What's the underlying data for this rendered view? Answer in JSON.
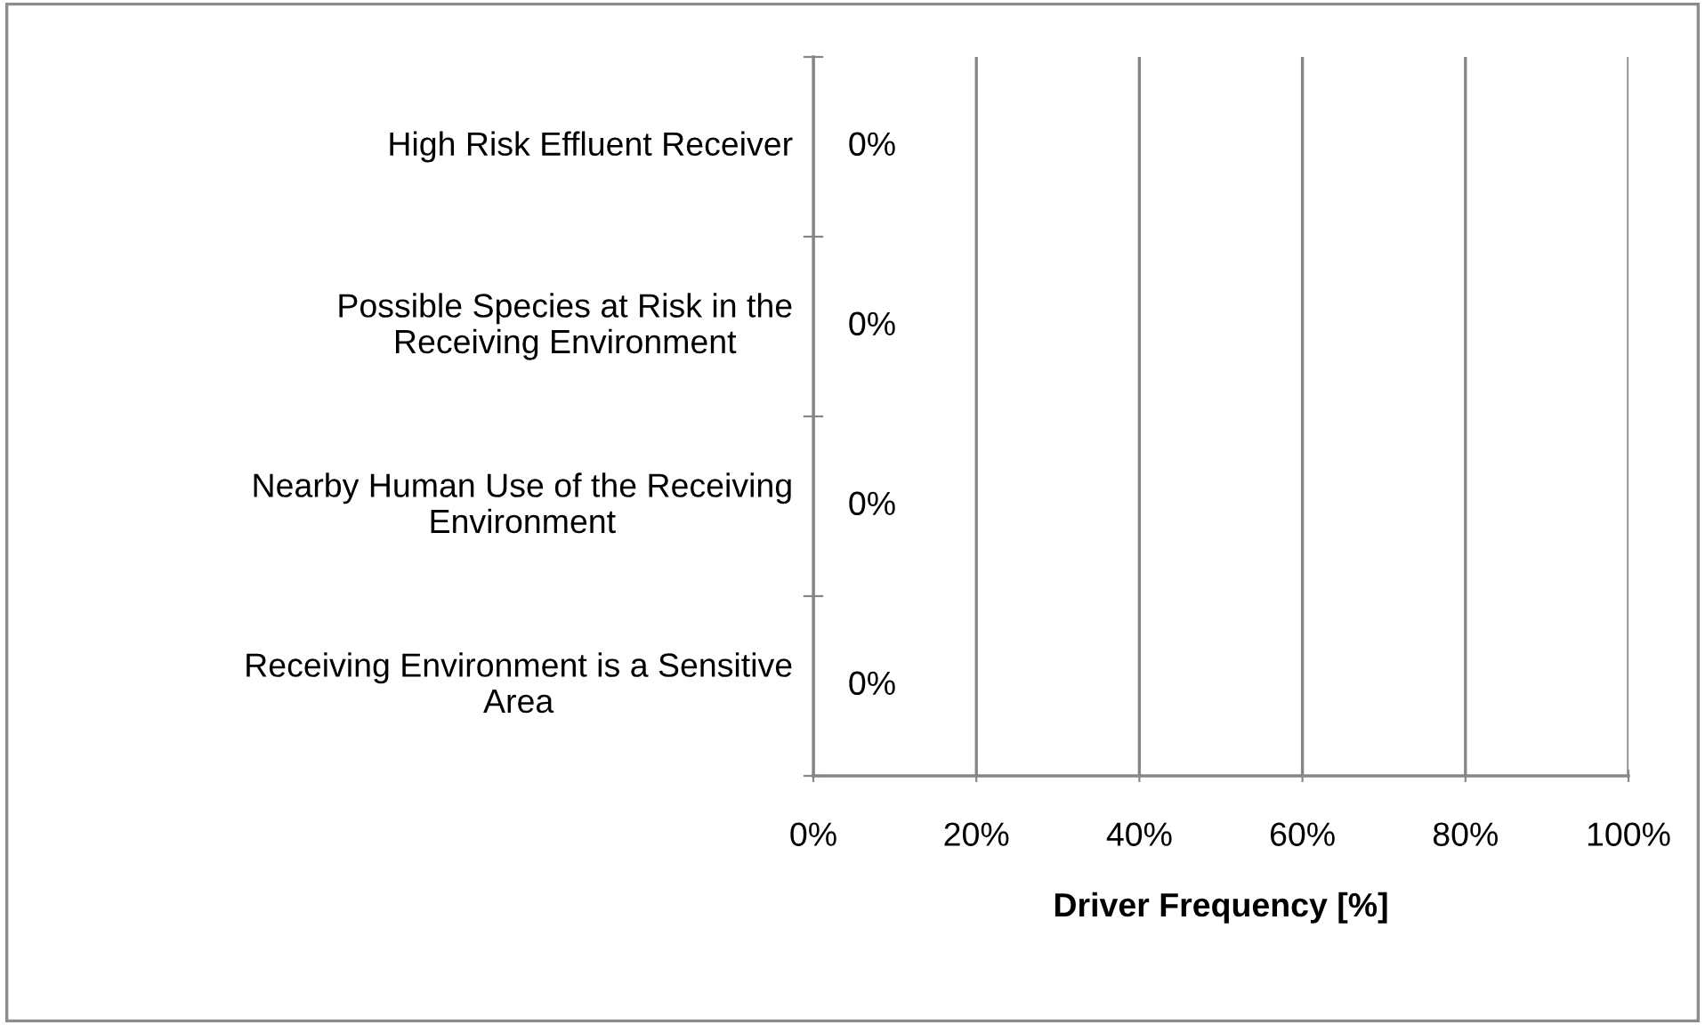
{
  "chart_data": {
    "type": "bar",
    "orientation": "horizontal",
    "categories": [
      "High Risk Effluent Receiver",
      "Possible Species at Risk in the Receiving Environment",
      "Nearby Human Use of the Receiving Environment",
      "Receiving Environment is a Sensitive Area"
    ],
    "values": [
      0,
      0,
      0,
      0
    ],
    "value_labels": [
      "0%",
      "0%",
      "0%",
      "0%"
    ],
    "xlabel": "Driver Frequency [%]",
    "xlim": [
      0,
      100
    ],
    "xticks": [
      {
        "value": 0,
        "label": "0%"
      },
      {
        "value": 20,
        "label": "20%"
      },
      {
        "value": 40,
        "label": "40%"
      },
      {
        "value": 60,
        "label": "60%"
      },
      {
        "value": 80,
        "label": "80%"
      },
      {
        "value": 100,
        "label": "100%"
      }
    ],
    "grid": "x",
    "legend": false
  }
}
